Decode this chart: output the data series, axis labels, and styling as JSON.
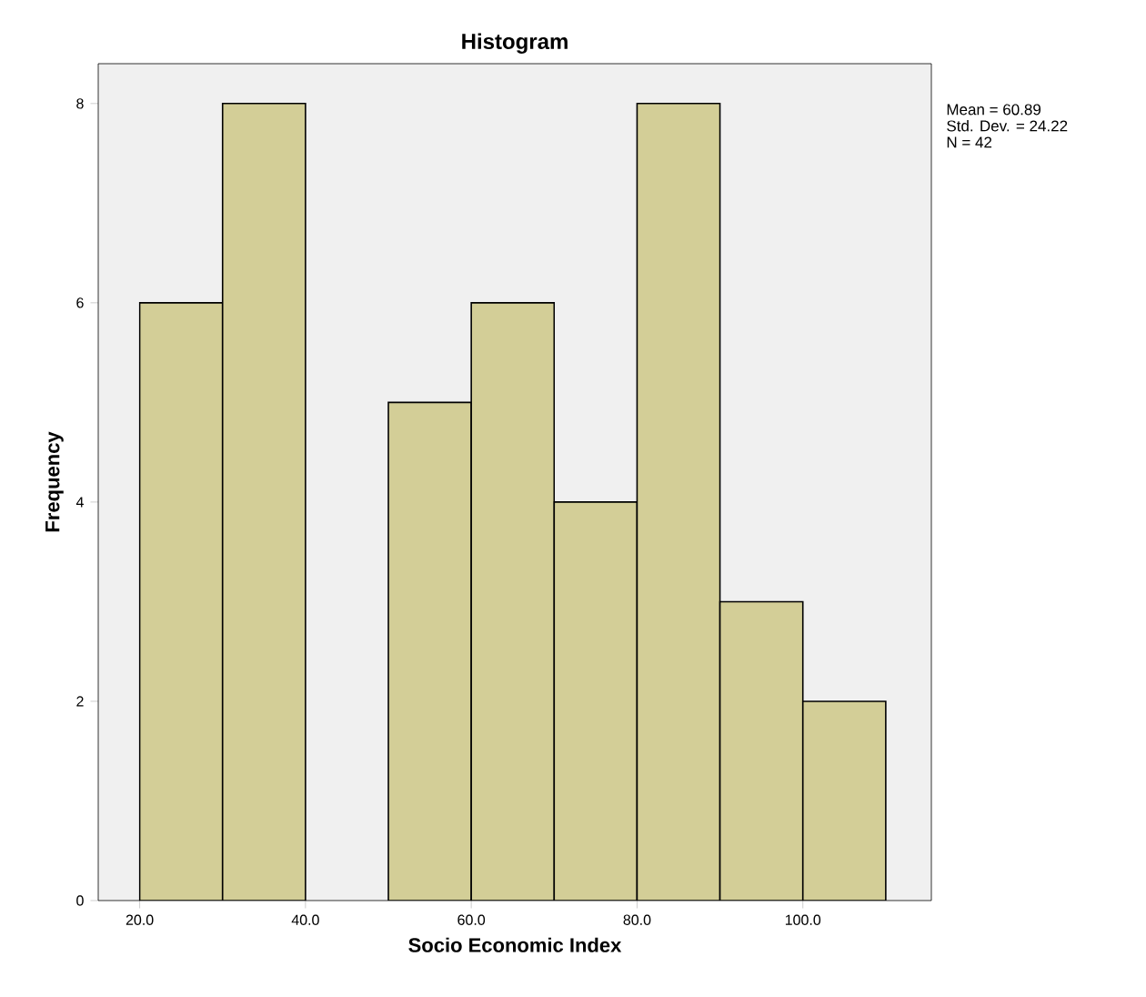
{
  "chart_data": {
    "type": "histogram",
    "title": "Histogram",
    "xlabel": "Socio Economic Index",
    "ylabel": "Frequency",
    "bins": [
      20,
      30,
      40,
      50,
      60,
      70,
      80,
      90,
      100,
      110
    ],
    "values": [
      6,
      8,
      0,
      5,
      6,
      4,
      8,
      3,
      2
    ],
    "color": "#d3ce97",
    "xlim": [
      15,
      115.5
    ],
    "xticks": [
      {
        "value": 20,
        "label": "20.0"
      },
      {
        "value": 40,
        "label": "40.0"
      },
      {
        "value": 60,
        "label": "60.0"
      },
      {
        "value": 80,
        "label": "80.0"
      },
      {
        "value": 100,
        "label": "100.0"
      }
    ],
    "ylim": [
      0,
      8.4
    ],
    "yticks": [
      0,
      2,
      4,
      6,
      8
    ],
    "grid": false,
    "annotations": [
      "Mean = 60.89",
      "Std. Dev. = 24.22",
      "N = 42"
    ]
  }
}
